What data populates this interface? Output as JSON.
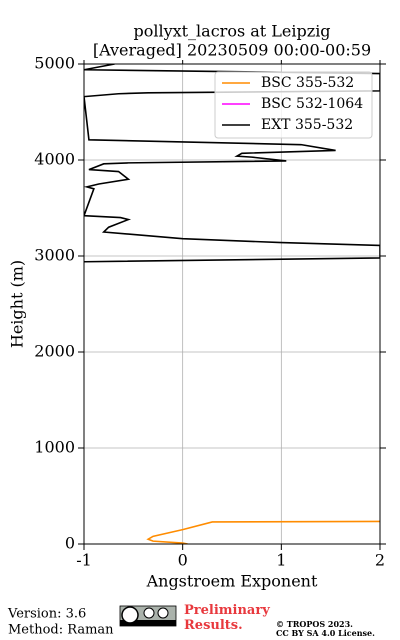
{
  "chart_data": {
    "type": "line",
    "title": "pollyxt_lacros at Leipzig",
    "subtitle": "[Averaged] 20230509 00:00-00:59",
    "x_label": "Angstroem Exponent",
    "y_label": "Height (m)",
    "xlim": [
      -1,
      2
    ],
    "xticks": [
      -1,
      0,
      1,
      2
    ],
    "ylim": [
      0,
      5000
    ],
    "yticks": [
      0,
      1000,
      2000,
      3000,
      4000,
      5000
    ],
    "grid": true,
    "legend": "upper right",
    "series": [
      {
        "name": "BSC 355-532",
        "color": "#ff8c00",
        "heights": [
          235,
          230,
          150,
          80,
          50,
          30,
          10,
          0
        ],
        "values": [
          2.0,
          0.3,
          0.0,
          -0.3,
          -0.35,
          -0.3,
          0.0,
          0.05
        ]
      },
      {
        "name": "BSC 532-1064",
        "color": "#ff00ff",
        "heights": [],
        "values": []
      },
      {
        "name": "EXT 355-532",
        "color": "#000000",
        "heights": [
          5000,
          4940,
          4900,
          4720,
          4700,
          4690,
          4660,
          4210,
          4160,
          4100,
          4070,
          4040,
          4030,
          3990,
          3970,
          3960,
          3900,
          3880,
          3800,
          3750,
          3720,
          3700,
          3420,
          3400,
          3380,
          3300,
          3250,
          3180,
          3140,
          3110,
          2980,
          2940
        ],
        "values": [
          -0.69,
          -1.0,
          2.0,
          2.0,
          -0.35,
          -0.65,
          -1.0,
          -0.95,
          1.2,
          1.55,
          0.6,
          0.55,
          0.7,
          1.05,
          -0.55,
          -0.8,
          -0.95,
          -0.65,
          -0.55,
          -0.85,
          -0.97,
          -0.9,
          -1.0,
          -0.63,
          -0.55,
          -0.75,
          -0.8,
          0.0,
          1.0,
          2.0,
          2.0,
          -1.0
        ]
      }
    ]
  },
  "footer": {
    "version": "Version: 3.6",
    "method": "Method: Raman",
    "preliminary": "Preliminary Results.",
    "copyright": "© TROPOS 2023.",
    "license": "CC BY SA 4.0 License."
  }
}
